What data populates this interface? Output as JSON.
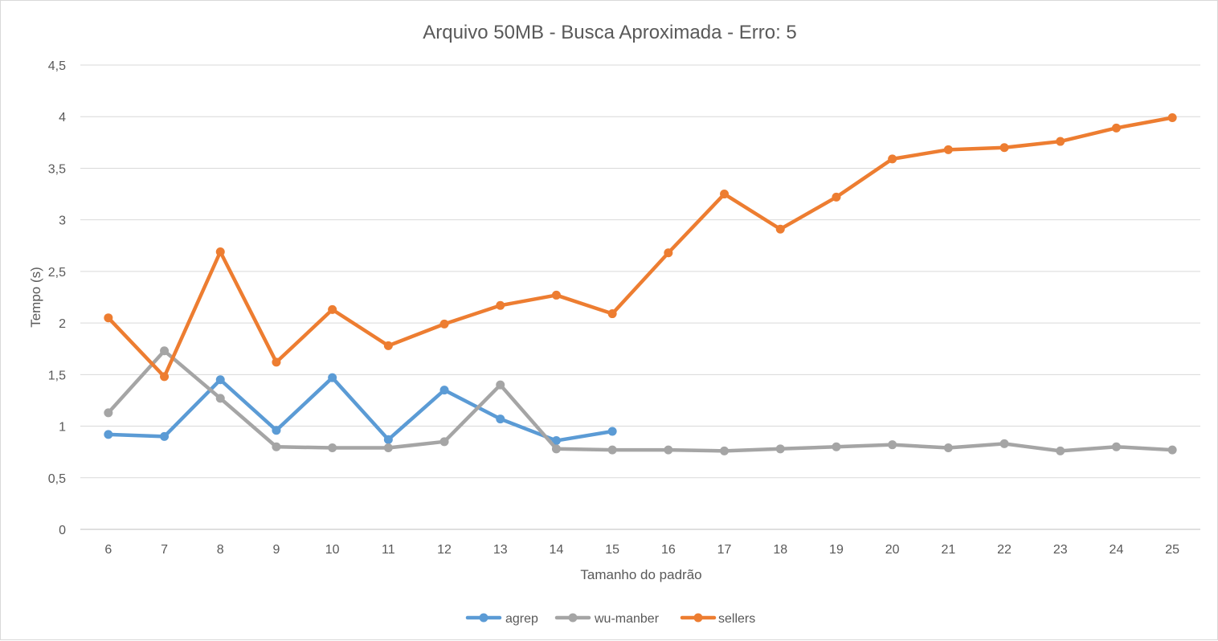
{
  "chart_data": {
    "type": "line",
    "title": "Arquivo 50MB - Busca Aproximada - Erro: 5",
    "xlabel": "Tamanho do padrão",
    "ylabel": "Tempo (s)",
    "ylim": [
      0,
      4.5
    ],
    "y_ticks": [
      "0",
      "0,5",
      "1",
      "1,5",
      "2",
      "2,5",
      "3",
      "3,5",
      "4",
      "4,5"
    ],
    "categories": [
      "6",
      "7",
      "8",
      "9",
      "10",
      "11",
      "12",
      "13",
      "14",
      "15",
      "16",
      "17",
      "18",
      "19",
      "20",
      "21",
      "22",
      "23",
      "24",
      "25"
    ],
    "grid": true,
    "legend_position": "bottom",
    "series": [
      {
        "name": "agrep",
        "color": "#5b9bd5",
        "values": [
          0.92,
          0.9,
          1.45,
          0.96,
          1.47,
          0.87,
          1.35,
          1.07,
          0.86,
          0.95,
          null,
          null,
          null,
          null,
          null,
          null,
          null,
          null,
          null,
          null
        ]
      },
      {
        "name": "wu-manber",
        "color": "#a5a5a5",
        "values": [
          1.13,
          1.73,
          1.27,
          0.8,
          0.79,
          0.79,
          0.85,
          1.4,
          0.78,
          0.77,
          0.77,
          0.76,
          0.78,
          0.8,
          0.82,
          0.79,
          0.83,
          0.76,
          0.8,
          0.77
        ]
      },
      {
        "name": "sellers",
        "color": "#ed7d31",
        "values": [
          2.05,
          1.48,
          2.69,
          1.62,
          2.13,
          1.78,
          1.99,
          2.17,
          2.27,
          2.09,
          2.68,
          3.25,
          2.91,
          3.22,
          3.59,
          3.68,
          3.7,
          3.76,
          3.89,
          3.99
        ]
      }
    ]
  }
}
